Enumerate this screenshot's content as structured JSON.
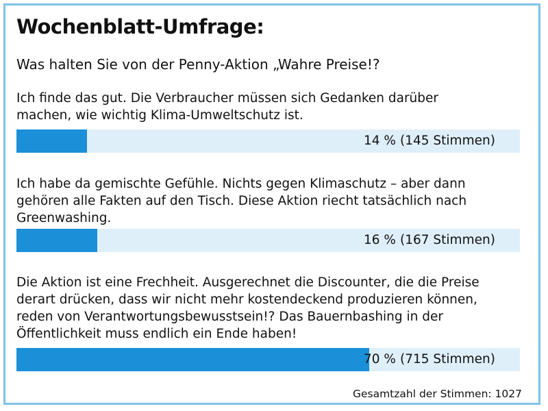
{
  "header": {
    "title": "Wochenblatt-Umfrage:",
    "question": "Was halten Sie von der Penny-Aktion „Wahre Preise!?"
  },
  "chart_data": {
    "type": "bar",
    "orientation": "horizontal",
    "categories": [
      "Ich finde das gut. Die Verbraucher müssen sich Gedanken darüber machen, wie wichtig Klima-Umweltschutz ist.",
      "Ich habe da gemischte Gefühle. Nichts gegen Klimaschutz – aber dann gehören alle Fakten auf den Tisch. Diese Aktion riecht tatsächlich nach Greenwashing.",
      "Die Aktion ist eine Frechheit. Ausgerechnet die Discounter, die die Preise derart drücken, dass wir nicht mehr kostendeckend produzieren können, reden von Verantwortungsbewusstsein!? Das Bauernbashing in der Öffentlichkeit muss endlich ein Ende haben!"
    ],
    "values": [
      14,
      16,
      70
    ],
    "xlim": [
      0,
      100
    ],
    "title": "Wochenblatt-Umfrage:",
    "subtitle": "Was halten Sie von der Penny-Aktion „Wahre Preise!?",
    "bar_color": "#1b90d9",
    "track_color": "#dfeff9",
    "options": [
      {
        "lines": [
          "Ich finde das gut. Die Verbraucher müssen sich Gedanken darüber",
          "machen, wie wichtig Klima-Umweltschutz ist."
        ],
        "percent": 14,
        "percent_label": "14 %",
        "votes_label": "(145 Stimmen)"
      },
      {
        "lines": [
          "Ich habe da gemischte Gefühle. Nichts gegen Klimaschutz – aber dann",
          "gehören alle Fakten auf den Tisch. Diese Aktion riecht tatsächlich nach",
          "Greenwashing."
        ],
        "percent": 16,
        "percent_label": "16 %",
        "votes_label": "(167 Stimmen)"
      },
      {
        "lines": [
          "Die Aktion ist eine Frechheit. Ausgerechnet die Discounter, die die Preise",
          "derart drücken, dass wir nicht mehr kostendeckend produzieren können,",
          "reden von Verantwortungsbewusstsein!? Das Bauernbashing in der",
          "Öffentlichkeit muss endlich ein Ende haben!"
        ],
        "percent": 70,
        "percent_label": "70 %",
        "votes_label": "(715 Stimmen)"
      }
    ],
    "total_label": "Gesamtzahl der Stimmen: 1027"
  }
}
